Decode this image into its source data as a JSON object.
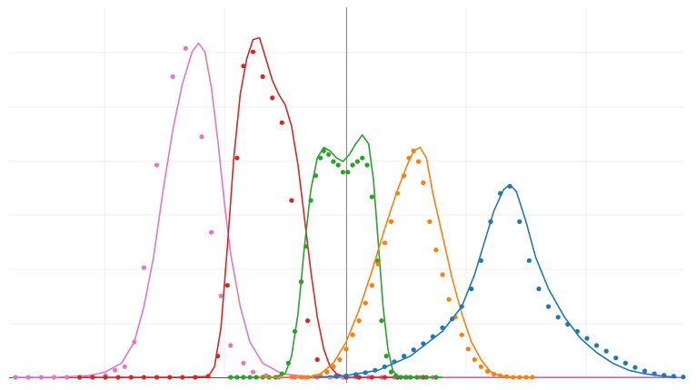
{
  "chart_data": {
    "type": "line",
    "title": "",
    "xlabel": "",
    "ylabel": "",
    "xlim": [
      -10.5,
      10.5
    ],
    "ylim": [
      0,
      1.0
    ],
    "grid": true,
    "legend": "none",
    "center_reference_x": 0,
    "series": [
      {
        "color": "#e377c2",
        "line": [
          [
            -10.4,
            0.0
          ],
          [
            -9.0,
            0.0
          ],
          [
            -8.0,
            0.005
          ],
          [
            -7.5,
            0.015
          ],
          [
            -7.0,
            0.04
          ],
          [
            -6.6,
            0.1
          ],
          [
            -6.3,
            0.2
          ],
          [
            -6.0,
            0.34
          ],
          [
            -5.7,
            0.53
          ],
          [
            -5.4,
            0.7
          ],
          [
            -5.1,
            0.83
          ],
          [
            -4.8,
            0.92
          ],
          [
            -4.6,
            0.945
          ],
          [
            -4.4,
            0.92
          ],
          [
            -4.2,
            0.82
          ],
          [
            -4.0,
            0.67
          ],
          [
            -3.8,
            0.5
          ],
          [
            -3.6,
            0.35
          ],
          [
            -3.3,
            0.2
          ],
          [
            -3.0,
            0.1
          ],
          [
            -2.6,
            0.04
          ],
          [
            -2.0,
            0.01
          ],
          [
            -1.0,
            0.0
          ],
          [
            2.5,
            0.0
          ],
          [
            10.4,
            0.0
          ]
        ],
        "points": [
          [
            -10.3,
            0.0
          ],
          [
            -9.9,
            0.0
          ],
          [
            -9.5,
            0.0
          ],
          [
            -9.1,
            0.0
          ],
          [
            -8.7,
            0.0
          ],
          [
            -8.3,
            0.0
          ],
          [
            -7.9,
            0.0
          ],
          [
            -7.5,
            0.005
          ],
          [
            -7.2,
            0.02
          ],
          [
            -6.9,
            0.03
          ],
          [
            -6.6,
            0.1
          ],
          [
            -6.3,
            0.31
          ],
          [
            -5.9,
            0.6
          ],
          [
            -5.4,
            0.85
          ],
          [
            -5.0,
            0.93
          ],
          [
            -4.5,
            0.68
          ],
          [
            -4.2,
            0.41
          ],
          [
            -3.9,
            0.23
          ],
          [
            -3.6,
            0.09
          ],
          [
            -3.2,
            0.04
          ],
          [
            -2.9,
            0.015
          ],
          [
            -2.5,
            0.005
          ],
          [
            -2.1,
            0.0
          ],
          [
            -1.7,
            0.0
          ],
          [
            -1.3,
            0.0
          ],
          [
            -0.9,
            0.0
          ],
          [
            -0.5,
            0.0
          ],
          [
            -0.1,
            0.0
          ],
          [
            0.3,
            0.0
          ],
          [
            0.7,
            0.0
          ],
          [
            1.1,
            0.0
          ],
          [
            1.5,
            0.0
          ],
          [
            1.9,
            0.0
          ],
          [
            2.3,
            0.0
          ],
          [
            2.7,
            0.0
          ]
        ]
      },
      {
        "color": "#d62728",
        "line": [
          [
            -8.2,
            0.0
          ],
          [
            -5.0,
            0.0
          ],
          [
            -4.3,
            0.002
          ],
          [
            -4.1,
            0.03
          ],
          [
            -3.9,
            0.14
          ],
          [
            -3.7,
            0.37
          ],
          [
            -3.5,
            0.62
          ],
          [
            -3.3,
            0.8
          ],
          [
            -3.1,
            0.9
          ],
          [
            -2.9,
            0.955
          ],
          [
            -2.7,
            0.96
          ],
          [
            -2.5,
            0.9
          ],
          [
            -2.3,
            0.84
          ],
          [
            -2.1,
            0.8
          ],
          [
            -1.9,
            0.77
          ],
          [
            -1.7,
            0.71
          ],
          [
            -1.5,
            0.6
          ],
          [
            -1.3,
            0.45
          ],
          [
            -1.1,
            0.3
          ],
          [
            -0.9,
            0.17
          ],
          [
            -0.7,
            0.08
          ],
          [
            -0.5,
            0.03
          ],
          [
            -0.3,
            0.01
          ],
          [
            0.0,
            0.0
          ],
          [
            2.7,
            0.0
          ]
        ],
        "points": [
          [
            -8.3,
            0.0
          ],
          [
            -7.9,
            0.0
          ],
          [
            -7.5,
            0.0
          ],
          [
            -7.1,
            0.0
          ],
          [
            -6.7,
            0.0
          ],
          [
            -6.3,
            0.0
          ],
          [
            -5.9,
            0.0
          ],
          [
            -5.5,
            0.0
          ],
          [
            -5.1,
            0.0
          ],
          [
            -4.7,
            0.0
          ],
          [
            -4.3,
            0.003
          ],
          [
            -4.0,
            0.06
          ],
          [
            -3.7,
            0.26
          ],
          [
            -3.4,
            0.62
          ],
          [
            -3.2,
            0.88
          ],
          [
            -2.9,
            0.92
          ],
          [
            -2.6,
            0.85
          ],
          [
            -2.3,
            0.79
          ],
          [
            -2.0,
            0.72
          ],
          [
            -1.7,
            0.5
          ],
          [
            -1.4,
            0.27
          ],
          [
            -1.2,
            0.16
          ],
          [
            -0.9,
            0.05
          ],
          [
            -0.6,
            0.015
          ],
          [
            -0.3,
            0.004
          ],
          [
            0.0,
            0.0
          ],
          [
            0.4,
            0.0
          ],
          [
            0.8,
            0.0
          ],
          [
            1.2,
            0.0
          ],
          [
            1.6,
            0.0
          ],
          [
            2.0,
            0.0
          ],
          [
            2.4,
            0.0
          ]
        ]
      },
      {
        "color": "#2ca02c",
        "line": [
          [
            -3.7,
            0.0
          ],
          [
            -2.3,
            0.0
          ],
          [
            -1.9,
            0.01
          ],
          [
            -1.7,
            0.06
          ],
          [
            -1.5,
            0.18
          ],
          [
            -1.3,
            0.37
          ],
          [
            -1.1,
            0.53
          ],
          [
            -0.9,
            0.62
          ],
          [
            -0.7,
            0.65
          ],
          [
            -0.5,
            0.64
          ],
          [
            -0.3,
            0.62
          ],
          [
            -0.1,
            0.61
          ],
          [
            0.1,
            0.63
          ],
          [
            0.3,
            0.66
          ],
          [
            0.5,
            0.685
          ],
          [
            0.7,
            0.66
          ],
          [
            0.85,
            0.56
          ],
          [
            1.0,
            0.38
          ],
          [
            1.15,
            0.2
          ],
          [
            1.3,
            0.08
          ],
          [
            1.45,
            0.02
          ],
          [
            1.6,
            0.003
          ],
          [
            2.2,
            0.0
          ],
          [
            3.0,
            0.0
          ]
        ],
        "points": [
          [
            -3.6,
            0.0
          ],
          [
            -3.4,
            0.0
          ],
          [
            -3.2,
            0.0
          ],
          [
            -3.0,
            0.0
          ],
          [
            -2.8,
            0.0
          ],
          [
            -2.6,
            0.0
          ],
          [
            -2.4,
            0.0
          ],
          [
            -2.2,
            0.0
          ],
          [
            -2.0,
            0.01
          ],
          [
            -1.8,
            0.04
          ],
          [
            -1.6,
            0.13
          ],
          [
            -1.4,
            0.27
          ],
          [
            -1.25,
            0.37
          ],
          [
            -1.1,
            0.5
          ],
          [
            -0.95,
            0.57
          ],
          [
            -0.8,
            0.62
          ],
          [
            -0.7,
            0.64
          ],
          [
            -0.55,
            0.63
          ],
          [
            -0.4,
            0.61
          ],
          [
            -0.25,
            0.6
          ],
          [
            -0.1,
            0.58
          ],
          [
            0.05,
            0.58
          ],
          [
            0.2,
            0.6
          ],
          [
            0.35,
            0.61
          ],
          [
            0.5,
            0.62
          ],
          [
            0.65,
            0.6
          ],
          [
            0.8,
            0.51
          ],
          [
            0.95,
            0.33
          ],
          [
            1.1,
            0.16
          ],
          [
            1.25,
            0.06
          ],
          [
            1.4,
            0.015
          ],
          [
            1.55,
            0.004
          ],
          [
            1.7,
            0.0
          ],
          [
            1.85,
            0.0
          ],
          [
            2.0,
            0.0
          ],
          [
            2.2,
            0.0
          ],
          [
            2.5,
            0.0
          ],
          [
            2.8,
            0.0
          ]
        ]
      },
      {
        "color": "#ff7f0e",
        "line": [
          [
            -2.7,
            0.0
          ],
          [
            -1.2,
            0.0
          ],
          [
            -0.8,
            0.01
          ],
          [
            -0.4,
            0.04
          ],
          [
            0.0,
            0.1
          ],
          [
            0.4,
            0.19
          ],
          [
            0.8,
            0.3
          ],
          [
            1.2,
            0.42
          ],
          [
            1.6,
            0.53
          ],
          [
            1.9,
            0.6
          ],
          [
            2.1,
            0.64
          ],
          [
            2.3,
            0.65
          ],
          [
            2.5,
            0.62
          ],
          [
            2.7,
            0.52
          ],
          [
            3.0,
            0.4
          ],
          [
            3.3,
            0.28
          ],
          [
            3.6,
            0.18
          ],
          [
            3.9,
            0.1
          ],
          [
            4.2,
            0.05
          ],
          [
            4.5,
            0.015
          ],
          [
            4.8,
            0.004
          ],
          [
            5.2,
            0.0
          ],
          [
            5.8,
            0.0
          ]
        ],
        "points": [
          [
            -1.6,
            0.0
          ],
          [
            -1.4,
            0.0
          ],
          [
            -1.2,
            0.0
          ],
          [
            -1.0,
            0.002
          ],
          [
            -0.8,
            0.005
          ],
          [
            -0.6,
            0.015
          ],
          [
            -0.4,
            0.03
          ],
          [
            -0.2,
            0.05
          ],
          [
            0.0,
            0.08
          ],
          [
            0.2,
            0.12
          ],
          [
            0.4,
            0.16
          ],
          [
            0.6,
            0.21
          ],
          [
            0.8,
            0.26
          ],
          [
            1.0,
            0.32
          ],
          [
            1.2,
            0.38
          ],
          [
            1.4,
            0.44
          ],
          [
            1.6,
            0.52
          ],
          [
            1.8,
            0.57
          ],
          [
            1.95,
            0.62
          ],
          [
            2.1,
            0.64
          ],
          [
            2.25,
            0.61
          ],
          [
            2.4,
            0.55
          ],
          [
            2.6,
            0.44
          ],
          [
            2.8,
            0.36
          ],
          [
            3.0,
            0.29
          ],
          [
            3.2,
            0.22
          ],
          [
            3.4,
            0.17
          ],
          [
            3.6,
            0.12
          ],
          [
            3.8,
            0.08
          ],
          [
            4.0,
            0.05
          ],
          [
            4.2,
            0.03
          ],
          [
            4.4,
            0.017
          ],
          [
            4.6,
            0.009
          ],
          [
            4.8,
            0.004
          ],
          [
            5.0,
            0.002
          ],
          [
            5.2,
            0.0
          ],
          [
            5.4,
            0.0
          ],
          [
            5.6,
            0.0
          ],
          [
            5.8,
            0.0
          ]
        ]
      },
      {
        "color": "#1f77b4",
        "line": [
          [
            -1.0,
            0.0
          ],
          [
            0.0,
            0.005
          ],
          [
            1.0,
            0.02
          ],
          [
            2.0,
            0.06
          ],
          [
            3.0,
            0.13
          ],
          [
            3.6,
            0.2
          ],
          [
            4.0,
            0.29
          ],
          [
            4.3,
            0.38
          ],
          [
            4.6,
            0.47
          ],
          [
            4.9,
            0.53
          ],
          [
            5.1,
            0.545
          ],
          [
            5.3,
            0.525
          ],
          [
            5.6,
            0.44
          ],
          [
            5.9,
            0.34
          ],
          [
            6.3,
            0.25
          ],
          [
            6.8,
            0.17
          ],
          [
            7.3,
            0.11
          ],
          [
            7.8,
            0.07
          ],
          [
            8.3,
            0.04
          ],
          [
            8.8,
            0.02
          ],
          [
            9.3,
            0.01
          ],
          [
            9.8,
            0.004
          ],
          [
            10.3,
            0.0
          ]
        ],
        "points": [
          [
            -0.3,
            0.002
          ],
          [
            0.0,
            0.004
          ],
          [
            0.3,
            0.008
          ],
          [
            0.6,
            0.013
          ],
          [
            0.9,
            0.02
          ],
          [
            1.2,
            0.03
          ],
          [
            1.5,
            0.044
          ],
          [
            1.8,
            0.06
          ],
          [
            2.1,
            0.078
          ],
          [
            2.4,
            0.095
          ],
          [
            2.7,
            0.115
          ],
          [
            3.0,
            0.14
          ],
          [
            3.3,
            0.165
          ],
          [
            3.6,
            0.2
          ],
          [
            3.9,
            0.25
          ],
          [
            4.2,
            0.33
          ],
          [
            4.5,
            0.44
          ],
          [
            4.8,
            0.52
          ],
          [
            5.1,
            0.54
          ],
          [
            5.4,
            0.44
          ],
          [
            5.7,
            0.33
          ],
          [
            6.0,
            0.25
          ],
          [
            6.3,
            0.2
          ],
          [
            6.6,
            0.17
          ],
          [
            6.9,
            0.15
          ],
          [
            7.2,
            0.13
          ],
          [
            7.5,
            0.11
          ],
          [
            7.8,
            0.09
          ],
          [
            8.1,
            0.074
          ],
          [
            8.4,
            0.055
          ],
          [
            8.7,
            0.04
          ],
          [
            9.0,
            0.028
          ],
          [
            9.3,
            0.018
          ],
          [
            9.6,
            0.01
          ],
          [
            9.9,
            0.006
          ],
          [
            10.2,
            0.003
          ],
          [
            10.5,
            0.001
          ]
        ]
      }
    ]
  }
}
